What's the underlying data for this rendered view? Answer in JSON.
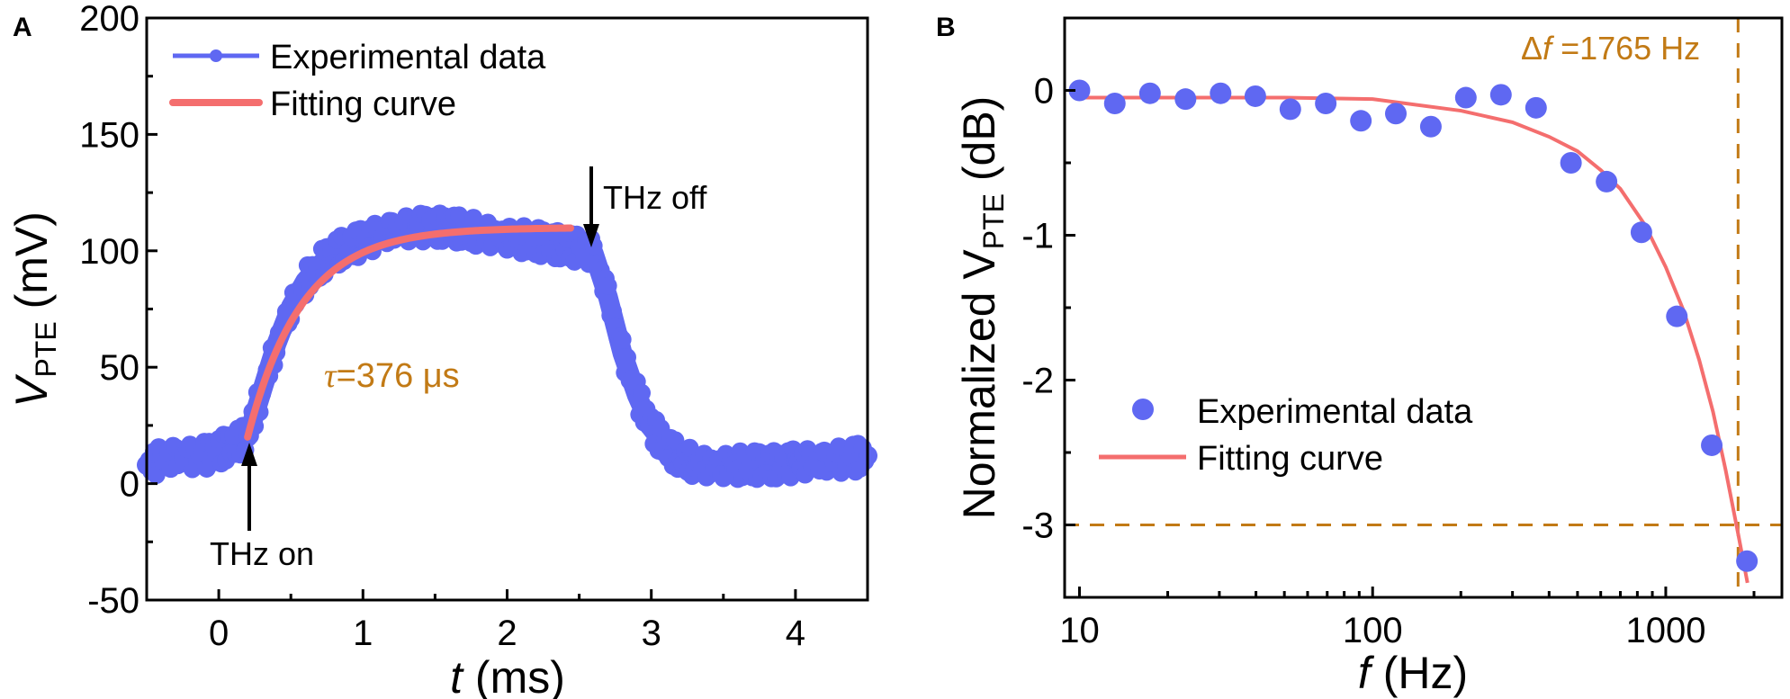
{
  "colors": {
    "data": "#5f68f2",
    "fit": "#f46e6e",
    "annotation": "#c27a15",
    "axis": "#000000"
  },
  "chart_data": [
    {
      "panel": "A",
      "type": "line",
      "xlabel_italic": "t",
      "xlabel_unit": " (ms)",
      "ylabel_main": "V",
      "ylabel_sub": "PTE",
      "ylabel_unit": " (mV)",
      "xlim": [
        -0.5,
        4.5
      ],
      "ylim": [
        -50,
        200
      ],
      "xticks": [
        0,
        1,
        2,
        3,
        4
      ],
      "xtick_labels": [
        "0",
        "1",
        "2",
        "3",
        "4"
      ],
      "yticks": [
        -50,
        0,
        50,
        100,
        150,
        200
      ],
      "ytick_labels": [
        "-50",
        "0",
        "50",
        "100",
        "150",
        "200"
      ],
      "legend": {
        "placement": "top-left",
        "entries": [
          "Experimental data",
          "Fitting curve"
        ]
      },
      "series": [
        {
          "name": "Experimental data",
          "style": "line+markers",
          "x": [
            -0.5,
            -0.4,
            -0.3,
            -0.2,
            -0.1,
            0,
            0.1,
            0.2,
            0.3,
            0.4,
            0.5,
            0.6,
            0.7,
            0.8,
            0.9,
            1.0,
            1.1,
            1.2,
            1.3,
            1.4,
            1.5,
            1.6,
            1.7,
            1.8,
            1.9,
            2.0,
            2.1,
            2.2,
            2.3,
            2.4,
            2.5,
            2.6,
            2.7,
            2.8,
            2.9,
            3.0,
            3.1,
            3.2,
            3.3,
            3.4,
            3.5,
            3.6,
            3.7,
            3.8,
            3.9,
            4.0,
            4.1,
            4.2,
            4.3,
            4.4,
            4.5
          ],
          "y": [
            8,
            10,
            11,
            11,
            12,
            14,
            17,
            20,
            40,
            60,
            76,
            87,
            94,
            99,
            102,
            104,
            106,
            108,
            109,
            110,
            110,
            110,
            109,
            108,
            107,
            106,
            105,
            104,
            103,
            102,
            101,
            99,
            80,
            56,
            38,
            24,
            16,
            11,
            9,
            8,
            8,
            8,
            8,
            8,
            8,
            9,
            9,
            9,
            10,
            11,
            12
          ]
        },
        {
          "name": "Fitting curve",
          "style": "line",
          "model": "exponential rise",
          "t_start": 0.2,
          "t_end": 2.45,
          "v0": 20,
          "vinf": 110,
          "tau_ms": 0.376
        }
      ],
      "annotations": {
        "tau_symbol": "τ",
        "tau_text": "=376 μs",
        "on_label": "THz on",
        "on_t": 0.2,
        "off_label": "THz off",
        "off_t": 2.6
      }
    },
    {
      "panel": "B",
      "type": "scatter",
      "xscale": "log",
      "xlabel_italic": "f",
      "xlabel_unit": " (Hz)",
      "ylabel_main": "Normalized V",
      "ylabel_sub": "PTE",
      "ylabel_unit": " (dB)",
      "xlim": [
        8.9,
        2490
      ],
      "ylim": [
        -3.5,
        0.5
      ],
      "xticks": [
        10,
        100,
        1000
      ],
      "xtick_labels": [
        "10",
        "100",
        "1000"
      ],
      "yticks": [
        0,
        -1,
        -2,
        -3
      ],
      "ytick_labels": [
        "0",
        "-1",
        "-2",
        "-3"
      ],
      "legend": {
        "placement": "bottom-center",
        "entries": [
          "Experimental data",
          "Fitting curve"
        ]
      },
      "series": [
        {
          "name": "Experimental data",
          "style": "markers",
          "x": [
            10,
            13.2,
            17.4,
            23,
            30.3,
            39.8,
            52.4,
            69.2,
            91.2,
            120,
            158,
            208,
            274,
            361,
            475,
            628,
            826,
            1091,
            1435,
            1892
          ],
          "y": [
            0,
            -0.09,
            -0.02,
            -0.06,
            -0.02,
            -0.04,
            -0.13,
            -0.09,
            -0.21,
            -0.16,
            -0.25,
            -0.05,
            -0.03,
            -0.12,
            -0.5,
            -0.63,
            -0.98,
            -1.56,
            -2.45,
            -3.25
          ]
        },
        {
          "name": "Fitting curve",
          "style": "line",
          "x": [
            10,
            50,
            100,
            200,
            300,
            400,
            500,
            600,
            700,
            850,
            1000,
            1150,
            1300,
            1450,
            1600,
            1765,
            1900
          ],
          "y": [
            -0.05,
            -0.05,
            -0.06,
            -0.14,
            -0.22,
            -0.32,
            -0.42,
            -0.55,
            -0.68,
            -0.93,
            -1.22,
            -1.52,
            -1.86,
            -2.22,
            -2.62,
            -3.06,
            -3.4
          ]
        }
      ],
      "reference_lines": {
        "h_value": -3,
        "v_value": 1765
      },
      "annotations": {
        "delta_symbol": "Δ",
        "delta_italic": "f",
        "delta_text": " =1765 Hz"
      }
    }
  ],
  "panels": {
    "a_label": "A",
    "b_label": "B"
  }
}
